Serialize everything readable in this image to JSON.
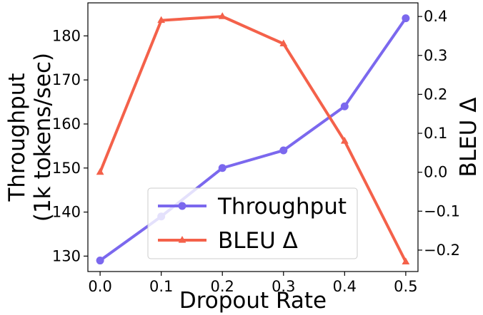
{
  "chart_data": {
    "type": "line",
    "x": [
      0.0,
      0.1,
      0.2,
      0.3,
      0.4,
      0.5
    ],
    "xlabel": "Dropout Rate",
    "xticks": [
      "0.0",
      "0.1",
      "0.2",
      "0.3",
      "0.4",
      "0.5"
    ],
    "xlim": [
      -0.02,
      0.52
    ],
    "ylabel_left": [
      "Throughput",
      "(1k tokens/sec)"
    ],
    "ylabel_right": "BLEU Δ",
    "ylim_left": [
      126.5,
      187.5
    ],
    "ylim_right": [
      -0.255,
      0.435
    ],
    "yticks_left": [
      "130",
      "140",
      "150",
      "160",
      "170",
      "180"
    ],
    "yticks_right": [
      "−0.2",
      "−0.1",
      "0.0",
      "0.1",
      "0.2",
      "0.3",
      "0.4"
    ],
    "series": [
      {
        "name": "Throughput",
        "axis": "left",
        "color": "#7b68ee",
        "marker": "circle",
        "values": [
          129,
          139,
          150,
          154,
          164,
          184
        ]
      },
      {
        "name": "BLEU Δ",
        "axis": "right",
        "color": "#f4614a",
        "marker": "triangle",
        "values": [
          0.0,
          0.39,
          0.4,
          0.33,
          0.08,
          -0.23
        ]
      }
    ],
    "legend": {
      "placement": "lower-center"
    },
    "grid": false
  }
}
